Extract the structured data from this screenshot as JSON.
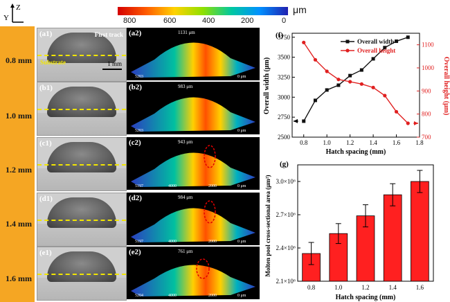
{
  "colorbar": {
    "ticks": [
      "800",
      "600",
      "400",
      "200",
      "0"
    ],
    "unit": "μm",
    "colors": [
      "#d40000",
      "#ff5a00",
      "#ffd200",
      "#8fe000",
      "#00c8a0",
      "#0090ff",
      "#2020b0"
    ]
  },
  "coord_axes": {
    "y": "Y",
    "z": "Z"
  },
  "rows": [
    {
      "spacing": "0.8 mm",
      "micro_tag": "(a1)",
      "topo_tag": "(a2)",
      "topo_height": "1131 μm",
      "topo_left": "5203",
      "topo_right": "0 μm",
      "first_track": "First track",
      "substrate": "Substrate",
      "scalebar": "1 mm"
    },
    {
      "spacing": "1.0 mm",
      "micro_tag": "(b1)",
      "topo_tag": "(b2)",
      "topo_height": "983 μm",
      "topo_left": "5203",
      "topo_right": "0 μm"
    },
    {
      "spacing": "1.2 mm",
      "micro_tag": "(c1)",
      "topo_tag": "(c2)",
      "topo_height": "943 μm",
      "topo_left": "5197",
      "topo_mid1": "4000",
      "topo_mid2": "2000",
      "topo_right": "0 μm"
    },
    {
      "spacing": "1.4 mm",
      "micro_tag": "(d1)",
      "topo_tag": "(d2)",
      "topo_height": "984 μm",
      "topo_left": "5197",
      "topo_mid1": "4000",
      "topo_mid2": "2000",
      "topo_right": "0 μm"
    },
    {
      "spacing": "1.6 mm",
      "micro_tag": "(e1)",
      "topo_tag": "(e2)",
      "topo_height": "761 μm",
      "topo_left": "5204",
      "topo_mid1": "4000",
      "topo_mid2": "2000",
      "topo_right": "0 μm"
    }
  ],
  "chart_data": [
    {
      "panel": "(f)",
      "type": "line",
      "xlabel": "Hatch spacing (mm)",
      "x": [
        0.8,
        0.9,
        1.0,
        1.1,
        1.2,
        1.3,
        1.4,
        1.5,
        1.6,
        1.7
      ],
      "xlim": [
        0.7,
        1.8
      ],
      "xticks": [
        "0.8",
        "1.0",
        "1.2",
        "1.4",
        "1.6",
        "1.8"
      ],
      "series": [
        {
          "name": "Overall width",
          "axis": "left",
          "color": "#111111",
          "values": [
            2700,
            2960,
            3090,
            3150,
            3270,
            3340,
            3480,
            3620,
            3700,
            3750
          ]
        },
        {
          "name": "Overall height",
          "axis": "right",
          "color": "#e02020",
          "values": [
            1110,
            1035,
            985,
            950,
            940,
            930,
            915,
            880,
            810,
            760
          ]
        }
      ],
      "ylabel_left": "Overall width (μm)",
      "ylim_left": [
        2500,
        3800
      ],
      "yticks_left": [
        "2500",
        "2750",
        "3000",
        "3250",
        "3500",
        "3750"
      ],
      "ylabel_right": "Overall height (μm)",
      "ylim_right": [
        700,
        1150
      ],
      "yticks_right": [
        "700",
        "800",
        "900",
        "1000",
        "1100"
      ],
      "legend_position": "top-left",
      "grid": false
    },
    {
      "panel": "(g)",
      "type": "bar",
      "xlabel": "Hatch spacing (mm)",
      "ylabel": "Molten pool cross-sectional area (μm²)",
      "categories": [
        "0.8",
        "1.0",
        "1.2",
        "1.4",
        "1.6"
      ],
      "values": [
        2350000,
        2530000,
        2690000,
        2880000,
        3000000
      ],
      "errors": [
        100000,
        90000,
        100000,
        100000,
        100000
      ],
      "ylim": [
        2100000,
        3150000
      ],
      "yticks": [
        "2.1×10⁶",
        "2.4×10⁶",
        "2.7×10⁶",
        "3.0×10⁶"
      ],
      "bar_color": "#ff2020",
      "grid": false
    }
  ]
}
